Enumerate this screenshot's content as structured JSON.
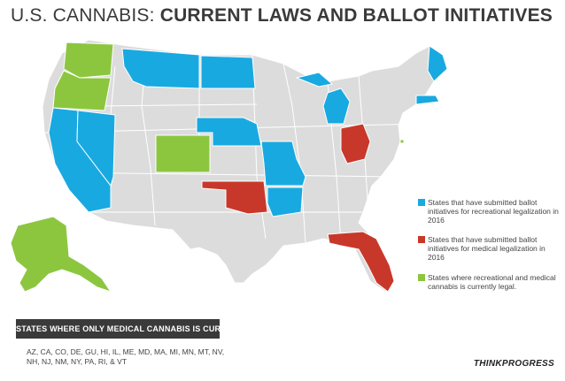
{
  "title": {
    "part1": "U.S. CANNABIS: ",
    "part2": "CURRENT LAWS AND BALLOT INITIATIVES"
  },
  "colors": {
    "base": "#dcdcdc",
    "recreational_initiative": "#19a9e1",
    "medical_initiative": "#c8382a",
    "legal": "#8cc63f",
    "border": "#ffffff"
  },
  "legend": [
    {
      "color": "#19a9e1",
      "text": "States that have submitted ballot initiatives for recreational legalization in 2016"
    },
    {
      "color": "#c8382a",
      "text": "States that have submitted ballot initiatives for medical legalization in 2016"
    },
    {
      "color": "#8cc63f",
      "text": "States where recreational and medical cannabis is currently legal."
    }
  ],
  "medical_only": {
    "heading": "STATES WHERE ONLY MEDICAL CANNABIS IS CURRENTLY LEGAL",
    "list": "AZ, CA, CO, DE, GU, HI, IL, ME, MD, MA, MI, MN, MT, NV, NH, NJ, NM, NY, PA, RI, & VT"
  },
  "brand": "THINKPROGRESS"
}
